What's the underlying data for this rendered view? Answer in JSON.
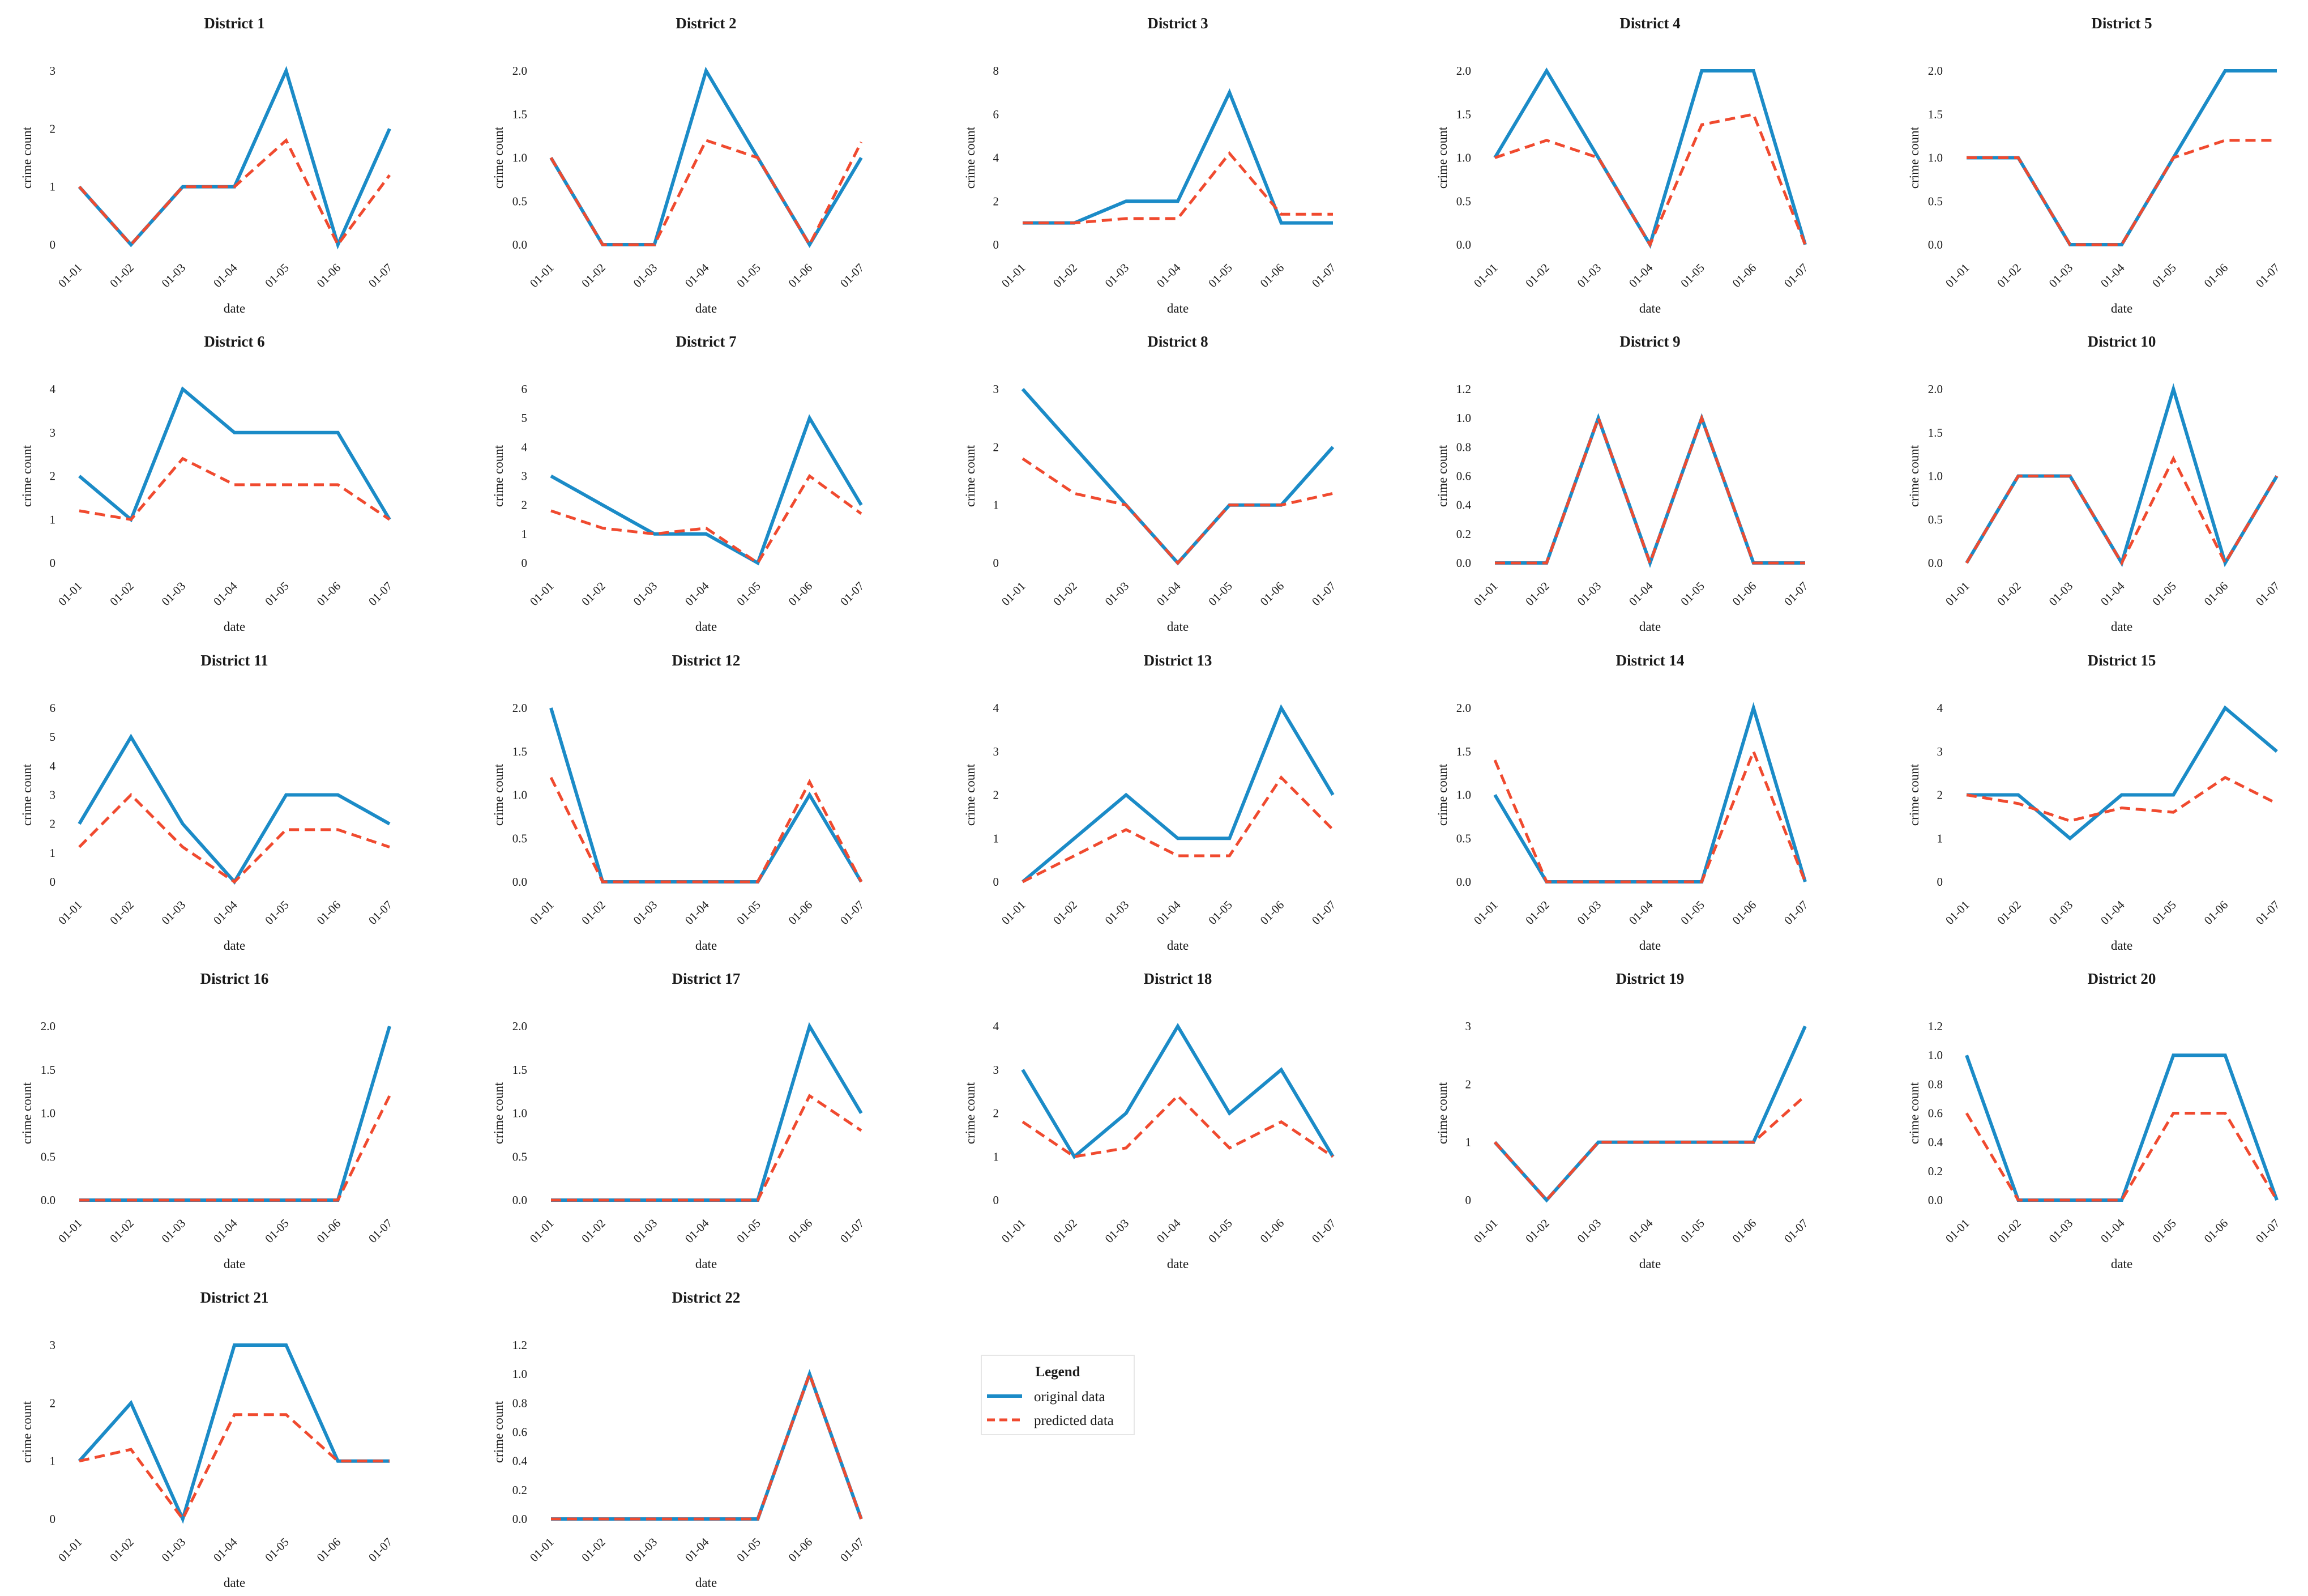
{
  "colors": {
    "original": "#1b8bc7",
    "predicted": "#f04a2f"
  },
  "legend": {
    "title": "Legend",
    "items": [
      {
        "label": "original data",
        "style": "solid",
        "color": "#1b8bc7"
      },
      {
        "label": "predicted data",
        "style": "dashed",
        "color": "#f04a2f"
      }
    ]
  },
  "chart_data": [
    {
      "type": "line",
      "title": "District 1",
      "xlabel": "date",
      "ylabel": "crime count",
      "categories": [
        "01-01",
        "01-02",
        "01-03",
        "01-04",
        "01-05",
        "01-06",
        "01-07"
      ],
      "yticks": [
        "0",
        "1",
        "2",
        "3"
      ],
      "ylim": [
        0,
        3
      ],
      "series": [
        {
          "name": "original data",
          "values": [
            1,
            0,
            1,
            1,
            3,
            0,
            2
          ]
        },
        {
          "name": "predicted data",
          "values": [
            1,
            0,
            1,
            1,
            1.8,
            0,
            1.2
          ]
        }
      ]
    },
    {
      "type": "line",
      "title": "District 2",
      "xlabel": "date",
      "ylabel": "crime count",
      "categories": [
        "01-01",
        "01-02",
        "01-03",
        "01-04",
        "01-05",
        "01-06",
        "01-07"
      ],
      "yticks": [
        "0.0",
        "0.5",
        "1.0",
        "1.5",
        "2.0"
      ],
      "ylim": [
        0,
        2
      ],
      "series": [
        {
          "name": "original data",
          "values": [
            1,
            0,
            0,
            2,
            1,
            0,
            1
          ]
        },
        {
          "name": "predicted data",
          "values": [
            1,
            0,
            0,
            1.2,
            1,
            0,
            1.18
          ]
        }
      ]
    },
    {
      "type": "line",
      "title": "District 3",
      "xlabel": "date",
      "ylabel": "crime count",
      "categories": [
        "01-01",
        "01-02",
        "01-03",
        "01-04",
        "01-05",
        "01-06",
        "01-07"
      ],
      "yticks": [
        "0",
        "2",
        "4",
        "6",
        "8"
      ],
      "ylim": [
        0,
        8
      ],
      "series": [
        {
          "name": "original data",
          "values": [
            1,
            1,
            2,
            2,
            7,
            1,
            1
          ]
        },
        {
          "name": "predicted data",
          "values": [
            1,
            1,
            1.2,
            1.2,
            4.2,
            1.4,
            1.4
          ]
        }
      ]
    },
    {
      "type": "line",
      "title": "District 4",
      "xlabel": "date",
      "ylabel": "crime count",
      "categories": [
        "01-01",
        "01-02",
        "01-03",
        "01-04",
        "01-05",
        "01-06",
        "01-07"
      ],
      "yticks": [
        "0.0",
        "0.5",
        "1.0",
        "1.5",
        "2.0"
      ],
      "ylim": [
        0,
        2
      ],
      "series": [
        {
          "name": "original data",
          "values": [
            1,
            2,
            1,
            0,
            2,
            2,
            0
          ]
        },
        {
          "name": "predicted data",
          "values": [
            1,
            1.2,
            1,
            0,
            1.38,
            1.5,
            0
          ]
        }
      ]
    },
    {
      "type": "line",
      "title": "District 5",
      "xlabel": "date",
      "ylabel": "crime count",
      "categories": [
        "01-01",
        "01-02",
        "01-03",
        "01-04",
        "01-05",
        "01-06",
        "01-07"
      ],
      "yticks": [
        "0.0",
        "0.5",
        "1.0",
        "1.5",
        "2.0"
      ],
      "ylim": [
        0,
        2
      ],
      "series": [
        {
          "name": "original data",
          "values": [
            1,
            1,
            0,
            0,
            1,
            2,
            2
          ]
        },
        {
          "name": "predicted data",
          "values": [
            1,
            1,
            0,
            0,
            1,
            1.2,
            1.2
          ]
        }
      ]
    },
    {
      "type": "line",
      "title": "District 6",
      "xlabel": "date",
      "ylabel": "crime count",
      "categories": [
        "01-01",
        "01-02",
        "01-03",
        "01-04",
        "01-05",
        "01-06",
        "01-07"
      ],
      "yticks": [
        "0",
        "1",
        "2",
        "3",
        "4"
      ],
      "ylim": [
        0,
        4
      ],
      "series": [
        {
          "name": "original data",
          "values": [
            2,
            1,
            4,
            3,
            3,
            3,
            1
          ]
        },
        {
          "name": "predicted data",
          "values": [
            1.2,
            1,
            2.4,
            1.8,
            1.8,
            1.8,
            1
          ]
        }
      ]
    },
    {
      "type": "line",
      "title": "District 7",
      "xlabel": "date",
      "ylabel": "crime count",
      "categories": [
        "01-01",
        "01-02",
        "01-03",
        "01-04",
        "01-05",
        "01-06",
        "01-07"
      ],
      "yticks": [
        "0",
        "1",
        "2",
        "3",
        "4",
        "5",
        "6"
      ],
      "ylim": [
        0,
        6
      ],
      "series": [
        {
          "name": "original data",
          "values": [
            3,
            2,
            1,
            1,
            0,
            5,
            2
          ]
        },
        {
          "name": "predicted data",
          "values": [
            1.8,
            1.2,
            1,
            1.2,
            0,
            3,
            1.7
          ]
        }
      ]
    },
    {
      "type": "line",
      "title": "District 8",
      "xlabel": "date",
      "ylabel": "crime count",
      "categories": [
        "01-01",
        "01-02",
        "01-03",
        "01-04",
        "01-05",
        "01-06",
        "01-07"
      ],
      "yticks": [
        "0",
        "1",
        "2",
        "3"
      ],
      "ylim": [
        0,
        3
      ],
      "series": [
        {
          "name": "original data",
          "values": [
            3,
            2,
            1,
            0,
            1,
            1,
            2
          ]
        },
        {
          "name": "predicted data",
          "values": [
            1.8,
            1.2,
            1,
            0,
            1,
            1,
            1.2
          ]
        }
      ]
    },
    {
      "type": "line",
      "title": "District 9",
      "xlabel": "date",
      "ylabel": "crime count",
      "categories": [
        "01-01",
        "01-02",
        "01-03",
        "01-04",
        "01-05",
        "01-06",
        "01-07"
      ],
      "yticks": [
        "0.0",
        "0.2",
        "0.4",
        "0.6",
        "0.8",
        "1.0",
        "1.2"
      ],
      "ylim": [
        0,
        1.2
      ],
      "series": [
        {
          "name": "original data",
          "values": [
            0,
            0,
            1,
            0,
            1,
            0,
            0
          ]
        },
        {
          "name": "predicted data",
          "values": [
            0,
            0,
            1,
            0,
            1,
            0,
            0
          ]
        }
      ]
    },
    {
      "type": "line",
      "title": "District 10",
      "xlabel": "date",
      "ylabel": "crime count",
      "categories": [
        "01-01",
        "01-02",
        "01-03",
        "01-04",
        "01-05",
        "01-06",
        "01-07"
      ],
      "yticks": [
        "0.0",
        "0.5",
        "1.0",
        "1.5",
        "2.0"
      ],
      "ylim": [
        0,
        2
      ],
      "series": [
        {
          "name": "original data",
          "values": [
            0,
            1,
            1,
            0,
            2,
            0,
            1
          ]
        },
        {
          "name": "predicted data",
          "values": [
            0,
            1,
            1,
            0,
            1.2,
            0,
            1
          ]
        }
      ]
    },
    {
      "type": "line",
      "title": "District 11",
      "xlabel": "date",
      "ylabel": "crime count",
      "categories": [
        "01-01",
        "01-02",
        "01-03",
        "01-04",
        "01-05",
        "01-06",
        "01-07"
      ],
      "yticks": [
        "0",
        "1",
        "2",
        "3",
        "4",
        "5",
        "6"
      ],
      "ylim": [
        0,
        6
      ],
      "series": [
        {
          "name": "original data",
          "values": [
            2,
            5,
            2,
            0,
            3,
            3,
            2
          ]
        },
        {
          "name": "predicted data",
          "values": [
            1.2,
            3,
            1.2,
            0,
            1.8,
            1.8,
            1.2
          ]
        }
      ]
    },
    {
      "type": "line",
      "title": "District 12",
      "xlabel": "date",
      "ylabel": "crime count",
      "categories": [
        "01-01",
        "01-02",
        "01-03",
        "01-04",
        "01-05",
        "01-06",
        "01-07"
      ],
      "yticks": [
        "0.0",
        "0.5",
        "1.0",
        "1.5",
        "2.0"
      ],
      "ylim": [
        0,
        2
      ],
      "series": [
        {
          "name": "original data",
          "values": [
            2,
            0,
            0,
            0,
            0,
            1,
            0
          ]
        },
        {
          "name": "predicted data",
          "values": [
            1.2,
            0,
            0,
            0,
            0,
            1.15,
            0
          ]
        }
      ]
    },
    {
      "type": "line",
      "title": "District 13",
      "xlabel": "date",
      "ylabel": "crime count",
      "categories": [
        "01-01",
        "01-02",
        "01-03",
        "01-04",
        "01-05",
        "01-06",
        "01-07"
      ],
      "yticks": [
        "0",
        "1",
        "2",
        "3",
        "4"
      ],
      "ylim": [
        0,
        4
      ],
      "series": [
        {
          "name": "original data",
          "values": [
            0,
            1,
            2,
            1,
            1,
            4,
            2
          ]
        },
        {
          "name": "predicted data",
          "values": [
            0,
            0.6,
            1.2,
            0.6,
            0.6,
            2.4,
            1.2
          ]
        }
      ]
    },
    {
      "type": "line",
      "title": "District 14",
      "xlabel": "date",
      "ylabel": "crime count",
      "categories": [
        "01-01",
        "01-02",
        "01-03",
        "01-04",
        "01-05",
        "01-06",
        "01-07"
      ],
      "yticks": [
        "0.0",
        "0.5",
        "1.0",
        "1.5",
        "2.0"
      ],
      "ylim": [
        0,
        2
      ],
      "series": [
        {
          "name": "original data",
          "values": [
            1,
            0,
            0,
            0,
            0,
            2,
            0
          ]
        },
        {
          "name": "predicted data",
          "values": [
            1.4,
            0,
            0,
            0,
            0,
            1.5,
            0
          ]
        }
      ]
    },
    {
      "type": "line",
      "title": "District 15",
      "xlabel": "date",
      "ylabel": "crime count",
      "categories": [
        "01-01",
        "01-02",
        "01-03",
        "01-04",
        "01-05",
        "01-06",
        "01-07"
      ],
      "yticks": [
        "0",
        "1",
        "2",
        "3",
        "4"
      ],
      "ylim": [
        0,
        4
      ],
      "series": [
        {
          "name": "original data",
          "values": [
            2,
            2,
            1,
            2,
            2,
            4,
            3
          ]
        },
        {
          "name": "predicted data",
          "values": [
            2,
            1.8,
            1.4,
            1.7,
            1.6,
            2.4,
            1.8
          ]
        }
      ]
    },
    {
      "type": "line",
      "title": "District 16",
      "xlabel": "date",
      "ylabel": "crime count",
      "categories": [
        "01-01",
        "01-02",
        "01-03",
        "01-04",
        "01-05",
        "01-06",
        "01-07"
      ],
      "yticks": [
        "0.0",
        "0.5",
        "1.0",
        "1.5",
        "2.0"
      ],
      "ylim": [
        0,
        2
      ],
      "series": [
        {
          "name": "original data",
          "values": [
            0,
            0,
            0,
            0,
            0,
            0,
            2
          ]
        },
        {
          "name": "predicted data",
          "values": [
            0,
            0,
            0,
            0,
            0,
            0,
            1.2
          ]
        }
      ]
    },
    {
      "type": "line",
      "title": "District 17",
      "xlabel": "date",
      "ylabel": "crime count",
      "categories": [
        "01-01",
        "01-02",
        "01-03",
        "01-04",
        "01-05",
        "01-06",
        "01-07"
      ],
      "yticks": [
        "0.0",
        "0.5",
        "1.0",
        "1.5",
        "2.0"
      ],
      "ylim": [
        0,
        2
      ],
      "series": [
        {
          "name": "original data",
          "values": [
            0,
            0,
            0,
            0,
            0,
            2,
            1
          ]
        },
        {
          "name": "predicted data",
          "values": [
            0,
            0,
            0,
            0,
            0,
            1.2,
            0.8
          ]
        }
      ]
    },
    {
      "type": "line",
      "title": "District 18",
      "xlabel": "date",
      "ylabel": "crime count",
      "categories": [
        "01-01",
        "01-02",
        "01-03",
        "01-04",
        "01-05",
        "01-06",
        "01-07"
      ],
      "yticks": [
        "0",
        "1",
        "2",
        "3",
        "4"
      ],
      "ylim": [
        0,
        4
      ],
      "series": [
        {
          "name": "original data",
          "values": [
            3,
            1,
            2,
            4,
            2,
            3,
            1
          ]
        },
        {
          "name": "predicted data",
          "values": [
            1.8,
            1,
            1.2,
            2.4,
            1.2,
            1.8,
            1
          ]
        }
      ]
    },
    {
      "type": "line",
      "title": "District 19",
      "xlabel": "date",
      "ylabel": "crime count",
      "categories": [
        "01-01",
        "01-02",
        "01-03",
        "01-04",
        "01-05",
        "01-06",
        "01-07"
      ],
      "yticks": [
        "0",
        "1",
        "2",
        "3"
      ],
      "ylim": [
        0,
        3
      ],
      "series": [
        {
          "name": "original data",
          "values": [
            1,
            0,
            1,
            1,
            1,
            1,
            3
          ]
        },
        {
          "name": "predicted data",
          "values": [
            1,
            0,
            1,
            1,
            1,
            1,
            1.8
          ]
        }
      ]
    },
    {
      "type": "line",
      "title": "District 20",
      "xlabel": "date",
      "ylabel": "crime count",
      "categories": [
        "01-01",
        "01-02",
        "01-03",
        "01-04",
        "01-05",
        "01-06",
        "01-07"
      ],
      "yticks": [
        "0.0",
        "0.2",
        "0.4",
        "0.6",
        "0.8",
        "1.0",
        "1.2"
      ],
      "ylim": [
        0,
        1.2
      ],
      "series": [
        {
          "name": "original data",
          "values": [
            1,
            0,
            0,
            0,
            1,
            1,
            0
          ]
        },
        {
          "name": "predicted data",
          "values": [
            0.6,
            0,
            0,
            0,
            0.6,
            0.6,
            0
          ]
        }
      ]
    },
    {
      "type": "line",
      "title": "District 21",
      "xlabel": "date",
      "ylabel": "crime count",
      "categories": [
        "01-01",
        "01-02",
        "01-03",
        "01-04",
        "01-05",
        "01-06",
        "01-07"
      ],
      "yticks": [
        "0",
        "1",
        "2",
        "3"
      ],
      "ylim": [
        0,
        3
      ],
      "series": [
        {
          "name": "original data",
          "values": [
            1,
            2,
            0,
            3,
            3,
            1,
            1
          ]
        },
        {
          "name": "predicted data",
          "values": [
            1,
            1.2,
            0,
            1.8,
            1.8,
            1,
            1
          ]
        }
      ]
    },
    {
      "type": "line",
      "title": "District 22",
      "xlabel": "date",
      "ylabel": "crime count",
      "categories": [
        "01-01",
        "01-02",
        "01-03",
        "01-04",
        "01-05",
        "01-06",
        "01-07"
      ],
      "yticks": [
        "0.0",
        "0.2",
        "0.4",
        "0.6",
        "0.8",
        "1.0",
        "1.2"
      ],
      "ylim": [
        0,
        1.2
      ],
      "series": [
        {
          "name": "original data",
          "values": [
            0,
            0,
            0,
            0,
            0,
            1,
            0
          ]
        },
        {
          "name": "predicted data",
          "values": [
            0,
            0,
            0,
            0,
            0,
            1,
            0
          ]
        }
      ]
    }
  ]
}
